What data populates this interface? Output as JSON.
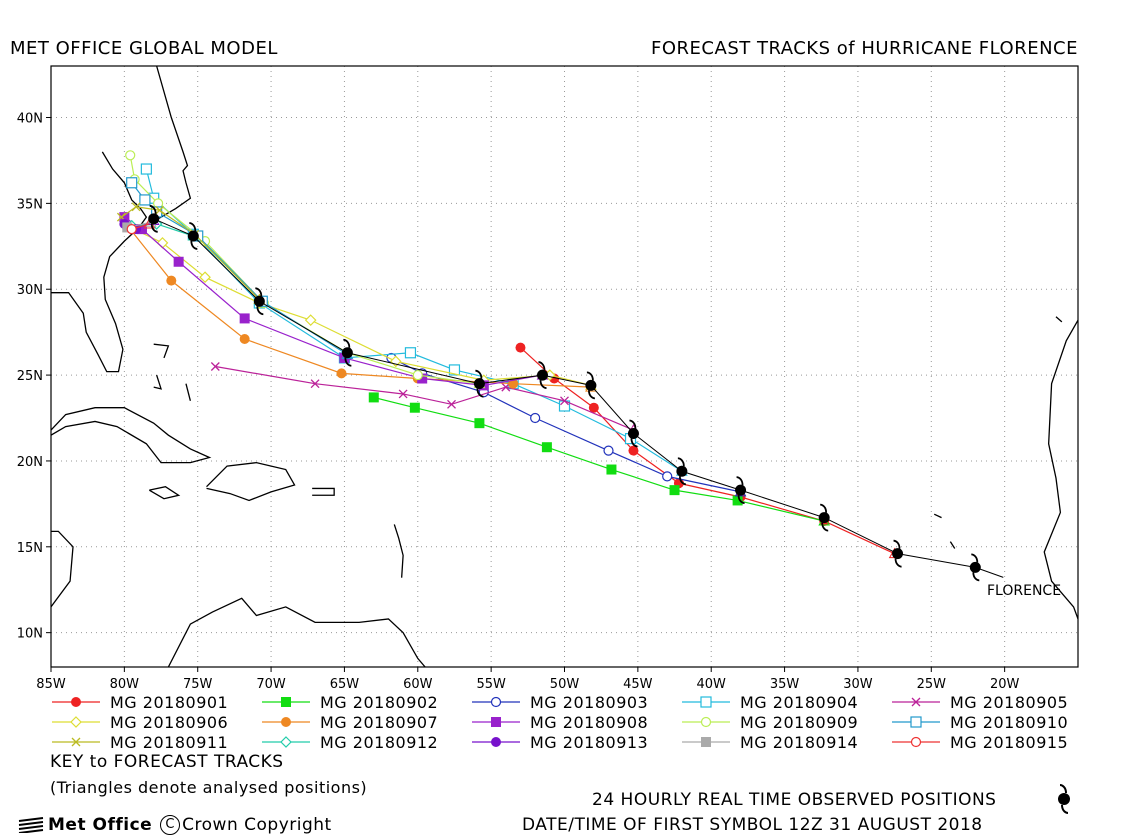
{
  "header": {
    "left": "MET OFFICE GLOBAL MODEL",
    "right": "FORECAST TRACKS of HURRICANE FLORENCE"
  },
  "map": {
    "lon_range": [
      -85,
      -15
    ],
    "lat_range": [
      8,
      43
    ],
    "x_tick_labels": [
      "85W",
      "80W",
      "75W",
      "70W",
      "65W",
      "60W",
      "55W",
      "50W",
      "45W",
      "40W",
      "35W",
      "30W",
      "25W",
      "20W"
    ],
    "y_tick_labels": [
      "10N",
      "15N",
      "20N",
      "25N",
      "30N",
      "35N",
      "40N"
    ],
    "storm_label": "FLORENCE",
    "grid": "dotted"
  },
  "observed_track": [
    [
      -22,
      13.8
    ],
    [
      -27.3,
      14.6
    ],
    [
      -32.3,
      16.7
    ],
    [
      -38,
      18.3
    ],
    [
      -42,
      19.4
    ],
    [
      -45.3,
      21.6
    ],
    [
      -48.2,
      24.4
    ],
    [
      -51.5,
      25.0
    ],
    [
      -55.8,
      24.5
    ],
    [
      -64.8,
      26.3
    ],
    [
      -70.8,
      29.3
    ],
    [
      -75.3,
      33.1
    ],
    [
      -78.0,
      34.1
    ]
  ],
  "forecasts": [
    {
      "label": "MG 20180901",
      "color": "#ee2222",
      "marker": "circle-filled",
      "points": [
        [
          -27.5,
          14.6
        ],
        [
          -32.3,
          16.5
        ],
        [
          -38,
          17.9
        ],
        [
          -42.2,
          18.7
        ],
        [
          -45.3,
          20.6
        ],
        [
          -48,
          23.1
        ],
        [
          -50.7,
          24.8
        ],
        [
          -53,
          26.6
        ]
      ]
    },
    {
      "label": "MG 20180902",
      "color": "#11dd11",
      "marker": "square-filled",
      "points": [
        [
          -32.3,
          16.5
        ],
        [
          -38.2,
          17.7
        ],
        [
          -42.5,
          18.3
        ],
        [
          -46.8,
          19.5
        ],
        [
          -51.2,
          20.8
        ],
        [
          -55.8,
          22.2
        ],
        [
          -60.2,
          23.1
        ],
        [
          -63,
          23.7
        ]
      ]
    },
    {
      "label": "MG 20180903",
      "color": "#2233bb",
      "marker": "circle-open",
      "points": [
        [
          -38,
          18.2
        ],
        [
          -43,
          19.1
        ],
        [
          -47,
          20.6
        ],
        [
          -52,
          22.5
        ],
        [
          -55.5,
          24
        ],
        [
          -59.7,
          25.1
        ],
        [
          -61.8,
          26
        ]
      ]
    },
    {
      "label": "MG 20180904",
      "color": "#22bbdd",
      "marker": "square-open",
      "points": [
        [
          -42,
          19.4
        ],
        [
          -45.5,
          21.3
        ],
        [
          -50,
          23.2
        ],
        [
          -53.5,
          24.5
        ],
        [
          -57.5,
          25.3
        ],
        [
          -60.5,
          26.3
        ],
        [
          -65,
          26
        ],
        [
          -70.8,
          29.2
        ],
        [
          -75.3,
          33.2
        ],
        [
          -78,
          35.3
        ],
        [
          -78.5,
          37
        ]
      ]
    },
    {
      "label": "MG 20180905",
      "color": "#bb2299",
      "marker": "x",
      "points": [
        [
          -45.3,
          21.8
        ],
        [
          -50,
          23.5
        ],
        [
          -54,
          24.3
        ],
        [
          -57.7,
          23.3
        ],
        [
          -61,
          23.9
        ],
        [
          -67,
          24.5
        ],
        [
          -73.8,
          25.5
        ]
      ]
    },
    {
      "label": "MG 20180906",
      "color": "#dddd33",
      "marker": "diamond-open",
      "points": [
        [
          -48.2,
          24.4
        ],
        [
          -51,
          25.0
        ],
        [
          -55.5,
          24.7
        ],
        [
          -61.5,
          25.8
        ],
        [
          -67.3,
          28.2
        ],
        [
          -70.8,
          29.2
        ],
        [
          -74.5,
          30.7
        ],
        [
          -77.4,
          32.7
        ],
        [
          -79.6,
          33.6
        ]
      ]
    },
    {
      "label": "MG 20180907",
      "color": "#ee8822",
      "marker": "circle-filled",
      "points": [
        [
          -48.2,
          24.3
        ],
        [
          -53.5,
          24.5
        ],
        [
          -60,
          24.8
        ],
        [
          -65.2,
          25.1
        ],
        [
          -71.8,
          27.1
        ],
        [
          -76.8,
          30.5
        ],
        [
          -79.7,
          33.6
        ]
      ]
    },
    {
      "label": "MG 20180908",
      "color": "#9922cc",
      "marker": "square-filled",
      "points": [
        [
          -51.5,
          25.0
        ],
        [
          -55.5,
          24.4
        ],
        [
          -59.7,
          24.8
        ],
        [
          -65,
          26
        ],
        [
          -71.8,
          28.3
        ],
        [
          -76.3,
          31.6
        ],
        [
          -78.8,
          33.5
        ],
        [
          -80,
          34.2
        ]
      ]
    },
    {
      "label": "MG 20180909",
      "color": "#bbee55",
      "marker": "circle-open",
      "points": [
        [
          -55.8,
          24.5
        ],
        [
          -60,
          25.0
        ],
        [
          -64.8,
          26.3
        ],
        [
          -70.5,
          29.2
        ],
        [
          -74.5,
          32.8
        ],
        [
          -77.7,
          35
        ],
        [
          -79.3,
          36.4
        ],
        [
          -79.6,
          37.8
        ]
      ]
    },
    {
      "label": "MG 20180910",
      "color": "#2299cc",
      "marker": "square-open",
      "points": [
        [
          -64.8,
          26.2
        ],
        [
          -70.6,
          29.3
        ],
        [
          -75,
          33.1
        ],
        [
          -77.8,
          34.5
        ],
        [
          -78.6,
          35.2
        ],
        [
          -79.5,
          36.2
        ]
      ]
    },
    {
      "label": "MG 20180911",
      "color": "#bbbb22",
      "marker": "x",
      "points": [
        [
          -70.8,
          29.4
        ],
        [
          -75.2,
          33.2
        ],
        [
          -77.6,
          34.6
        ],
        [
          -79.2,
          34.8
        ],
        [
          -80.2,
          34.2
        ]
      ]
    },
    {
      "label": "MG 20180912",
      "color": "#22ccaa",
      "marker": "diamond-open",
      "points": [
        [
          -75.3,
          33.1
        ],
        [
          -77.8,
          33.8
        ],
        [
          -79.5,
          33.7
        ]
      ]
    },
    {
      "label": "MG 20180913",
      "color": "#7711cc",
      "marker": "circle-filled",
      "points": [
        [
          -78,
          34
        ],
        [
          -79.2,
          33.5
        ],
        [
          -80,
          33.8
        ]
      ]
    },
    {
      "label": "MG 20180914",
      "color": "#aaaaaa",
      "marker": "square-filled",
      "points": [
        [
          -78.2,
          33.9
        ],
        [
          -79.8,
          33.6
        ]
      ]
    },
    {
      "label": "MG 20180915",
      "color": "#ee3333",
      "marker": "circle-open",
      "points": [
        [
          -78.3,
          33.8
        ],
        [
          -79.5,
          33.5
        ]
      ]
    }
  ],
  "footer": {
    "key_title": "KEY to FORECAST TRACKS",
    "key_note": "(Triangles denote analysed positions)",
    "obs_label": "24 HOURLY REAL TIME OBSERVED POSITIONS",
    "date_label": "DATE/TIME OF FIRST SYMBOL 12Z 31 AUGUST 2018",
    "logo": "Met Office",
    "copyright": "Crown Copyright"
  }
}
